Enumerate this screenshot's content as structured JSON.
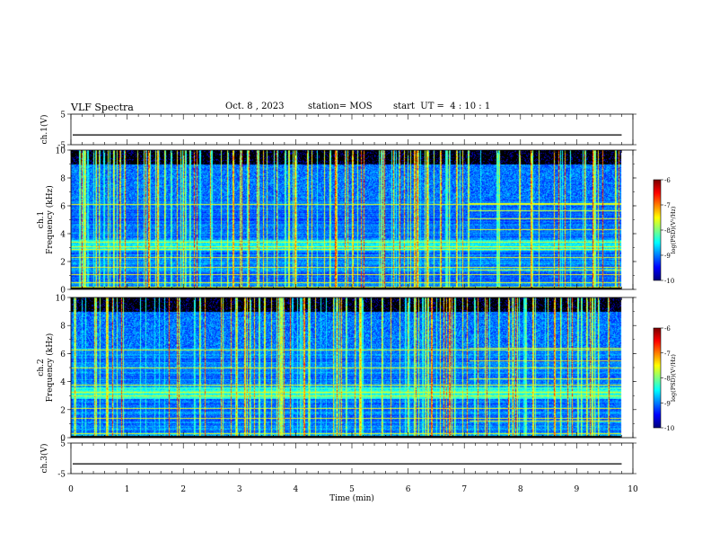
{
  "header": {
    "title": "VLF Spectra",
    "date": "Oct. 8 , 2023",
    "station": "station= MOS",
    "start_ut": "start  UT =  4 : 10 : 1"
  },
  "chart_data": {
    "type": "heatmap",
    "xlabel": "Time (min)",
    "xlim": [
      0,
      10
    ],
    "x_ticks": [
      "0",
      "1",
      "2",
      "3",
      "4",
      "5",
      "6",
      "7",
      "8",
      "9",
      "10"
    ],
    "data_end_min": 9.8,
    "panels": [
      {
        "id": "ch1-waveform",
        "ylabel": "ch.1(V)",
        "type": "line",
        "ylim": [
          -5,
          5
        ],
        "y_ticks": [
          "5",
          "-5"
        ],
        "value": -1.8
      },
      {
        "id": "ch1-spectrogram",
        "ylabel_line1": "ch.1",
        "ylabel_line2": "Frequency (kHz)",
        "type": "heatmap",
        "ylim": [
          0,
          10
        ],
        "y_ticks": [
          "0",
          "2",
          "4",
          "6",
          "8",
          "10"
        ],
        "colorbar": {
          "label": "log(PSD)(V²/Hz)",
          "ticks": [
            "-6",
            "-7",
            "-8",
            "-9",
            "-10"
          ],
          "range": [
            -10,
            -6
          ]
        },
        "lines_khz": [
          0.2,
          0.5,
          1.1,
          1.6,
          2.3,
          2.9,
          3.1,
          3.4,
          6.1
        ],
        "late_lines_khz": [
          1.4,
          4.3,
          5.1,
          5.7,
          6.2
        ],
        "late_start_min": 7.1
      },
      {
        "id": "ch2-spectrogram",
        "ylabel_line1": "ch.2",
        "ylabel_line2": "Frequency (kHz)",
        "type": "heatmap",
        "ylim": [
          0,
          10
        ],
        "y_ticks": [
          "0",
          "2",
          "4",
          "6",
          "8",
          "10"
        ],
        "colorbar": {
          "label": "log(PSD)(V²/Hz)",
          "ticks": [
            "-6",
            "-7",
            "-8",
            "-9",
            "-10"
          ],
          "range": [
            -10,
            -6
          ]
        },
        "lines_khz": [
          0.3,
          1.4,
          2.1,
          3.0,
          3.3,
          3.8,
          5.0,
          6.3
        ],
        "late_lines_khz": [
          1.2,
          4.2,
          5.5,
          6.4
        ],
        "late_start_min": 7.1
      },
      {
        "id": "ch3-waveform",
        "ylabel": "ch.3(V)",
        "type": "line",
        "ylim": [
          -5,
          5
        ],
        "y_ticks": [
          "5",
          "-5"
        ],
        "value": -1.8
      }
    ]
  }
}
